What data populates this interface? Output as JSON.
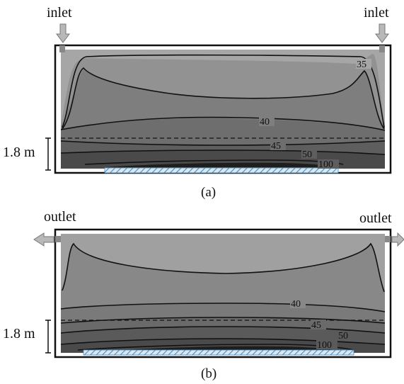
{
  "panel_a": {
    "caption": "(a)",
    "port_label_left": "inlet",
    "port_label_right": "inlet",
    "height_marker": "1.8 m",
    "contour_labels": [
      "35",
      "40",
      "45",
      "50",
      "100"
    ]
  },
  "panel_b": {
    "caption": "(b)",
    "port_label_left": "outlet",
    "port_label_right": "outlet",
    "height_marker": "1.8 m",
    "contour_labels": [
      "40",
      "45",
      "50",
      "100"
    ]
  },
  "colors": {
    "frame": "#111111",
    "zone_upper": "#a0a0a0",
    "zone_mid": "#7e7e7e",
    "zone_low": "#5e5e5e",
    "zone_dark": "#222222",
    "heater": "#9ec3dc",
    "arrow": "#b8b8b8"
  }
}
